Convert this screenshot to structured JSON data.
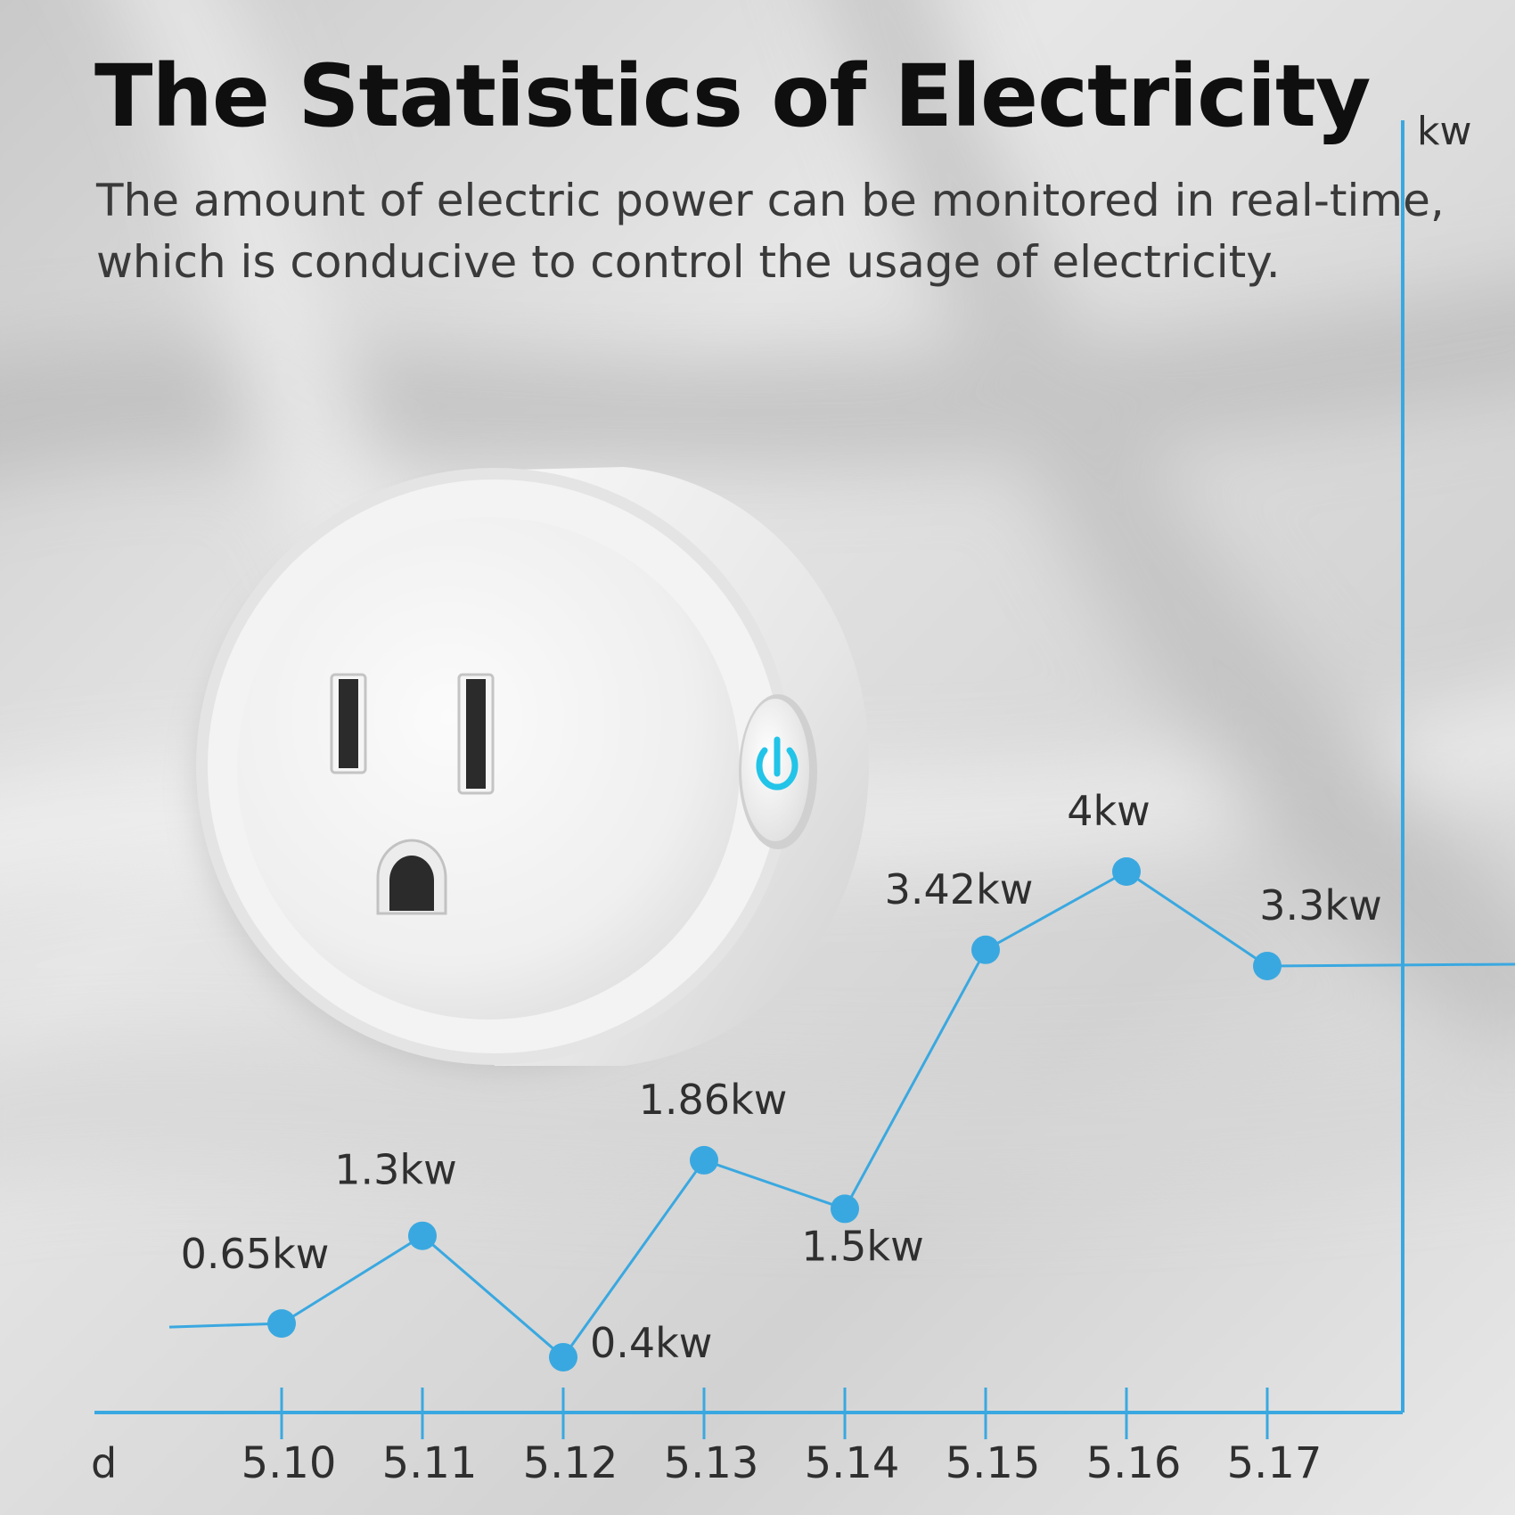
{
  "title": "The Statistics of Electricity",
  "subtitle_lines": [
    "The amount of electric power can be monitored in real-time,",
    "which is conducive to control the usage of electricity."
  ],
  "colors": {
    "accent": "#3aa8e0",
    "title": "#0f0f0f",
    "text": "#3a3a3a",
    "plug_body": "#f4f4f4",
    "power_glow": "#22c4e8"
  },
  "icons": [
    "power-icon"
  ],
  "chart_data": {
    "type": "line",
    "title": "The Statistics of Electricity",
    "xlabel": "d",
    "ylabel": "kw",
    "categories": [
      "5.10",
      "5.11",
      "5.12",
      "5.13",
      "5.14",
      "5.15",
      "5.16",
      "5.17"
    ],
    "values": [
      0.65,
      1.3,
      0.4,
      1.86,
      1.5,
      3.42,
      4.0,
      3.3
    ],
    "data_labels": [
      "0.65kw",
      "1.3kw",
      "0.4kw",
      "1.86kw",
      "1.5kw",
      "3.42kw",
      "4kw",
      "3.3kw"
    ],
    "ylim": [
      -0.01,
      4.0
    ],
    "grid": false,
    "legend": "none"
  }
}
